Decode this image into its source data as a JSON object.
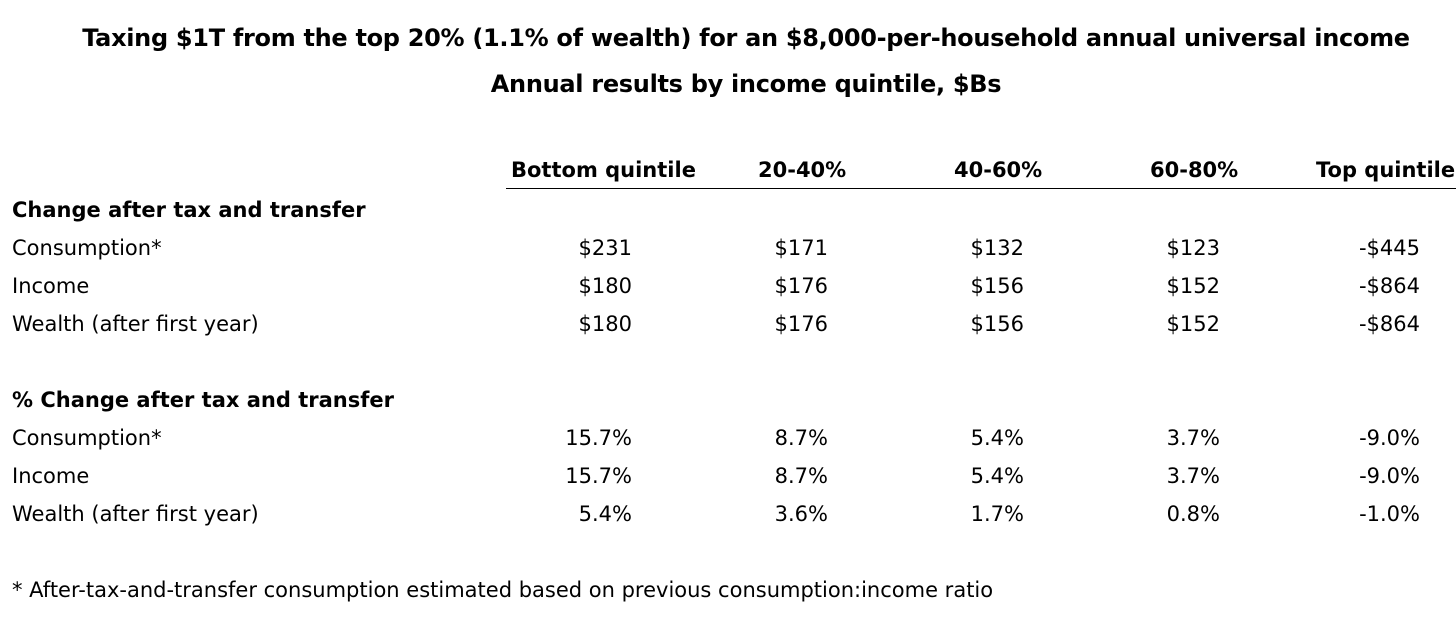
{
  "title": "Taxing $1T from the top 20% (1.1% of wealth) for an $8,000-per-household annual universal income",
  "subtitle": "Annual results by income quintile, $Bs",
  "columns": [
    "Bottom quintile",
    "20-40%",
    "40-60%",
    "60-80%",
    "Top quintile"
  ],
  "sections": [
    {
      "label": "Change after tax and transfer",
      "rows": [
        {
          "label": "Consumption*",
          "values": [
            "$231",
            "$171",
            "$132",
            "$123",
            "-$445"
          ]
        },
        {
          "label": "Income",
          "values": [
            "$180",
            "$176",
            "$156",
            "$152",
            "-$864"
          ]
        },
        {
          "label": "Wealth (after first year)",
          "values": [
            "$180",
            "$176",
            "$156",
            "$152",
            "-$864"
          ]
        }
      ]
    },
    {
      "label": "% Change after tax and transfer",
      "rows": [
        {
          "label": "Consumption*",
          "values": [
            "15.7%",
            "8.7%",
            "5.4%",
            "3.7%",
            "-9.0%"
          ]
        },
        {
          "label": "Income",
          "values": [
            "15.7%",
            "8.7%",
            "5.4%",
            "3.7%",
            "-9.0%"
          ]
        },
        {
          "label": "Wealth (after first year)",
          "values": [
            "5.4%",
            "3.6%",
            "1.7%",
            "0.8%",
            "-1.0%"
          ]
        }
      ]
    }
  ],
  "footnote": "* After-tax-and-transfer consumption estimated based on previous consumption:income ratio"
}
